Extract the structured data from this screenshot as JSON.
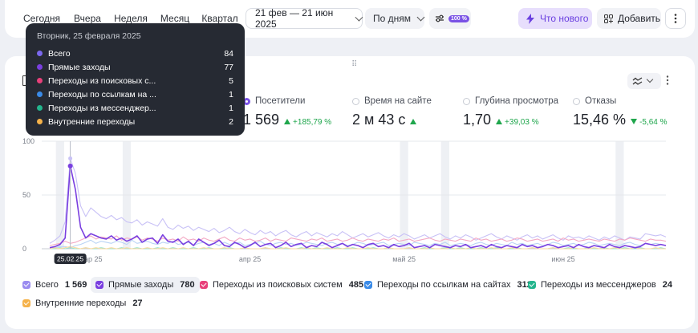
{
  "toolbar": {
    "periods": [
      "Сегодня",
      "Вчера",
      "Неделя",
      "Месяц",
      "Квартал"
    ],
    "date_range": "21 фев — 21 июн 2025",
    "grouping": "По дням",
    "sampling_badge": "100 %",
    "whats_new": "Что нового",
    "add": "Добавить"
  },
  "metrics": [
    {
      "label": "Посетители",
      "value": "1 569",
      "delta": "+185,79 %",
      "direction": "up",
      "selected": true
    },
    {
      "label": "Время на сайте",
      "value": "2 м 43 с",
      "delta": "",
      "direction": "up",
      "selected": false
    },
    {
      "label": "Глубина просмотра",
      "value": "1,70",
      "delta": "+39,03 %",
      "direction": "up",
      "selected": false
    },
    {
      "label": "Отказы",
      "value": "15,46 %",
      "delta": "-5,64 %",
      "direction": "down",
      "selected": false
    }
  ],
  "tooltip": {
    "title": "Вторник, 25 февраля 2025",
    "rows": [
      {
        "label": "Всего",
        "value": "84",
        "color": "#7b68ee"
      },
      {
        "label": "Прямые заходы",
        "value": "77",
        "color": "#7a3fe0"
      },
      {
        "label": "Переходы из поисковых с...",
        "value": "5",
        "color": "#e8407a"
      },
      {
        "label": "Переходы по ссылкам на ...",
        "value": "1",
        "color": "#3a8be8"
      },
      {
        "label": "Переходы из мессенджер...",
        "value": "1",
        "color": "#23b58d"
      },
      {
        "label": "Внутренние переходы",
        "value": "2",
        "color": "#f5b24a"
      }
    ]
  },
  "legend": [
    {
      "label": "Всего",
      "value": "1 569",
      "color": "#9b8cf0",
      "active": false
    },
    {
      "label": "Прямые заходы",
      "value": "780",
      "color": "#7a3fe0",
      "active": true
    },
    {
      "label": "Переходы из поисковых систем",
      "value": "485",
      "color": "#e8407a",
      "active": false
    },
    {
      "label": "Переходы по ссылкам на сайтах",
      "value": "312",
      "color": "#3a8be8",
      "active": false
    },
    {
      "label": "Переходы из мессенджеров",
      "value": "24",
      "color": "#23b58d",
      "active": false
    },
    {
      "label": "Внутренние переходы",
      "value": "27",
      "color": "#f5b24a",
      "active": false
    }
  ],
  "chart_data": {
    "type": "line",
    "x_start": "2025-02-21",
    "x_end": "2025-06-21",
    "x_tick_labels": [
      "мар 25",
      "апр 25",
      "май 25",
      "июн 25"
    ],
    "x_tick_dates": [
      "2025-03-01",
      "2025-04-01",
      "2025-05-01",
      "2025-06-01"
    ],
    "highlighted_x_label": "25.02.25",
    "highlighted_x": "2025-02-25",
    "ylim": [
      0,
      100
    ],
    "y_ticks": [
      0,
      50,
      100
    ],
    "grid": true,
    "holiday_bands": [
      "2025-02-23",
      "2025-03-08",
      "2025-05-01",
      "2025-05-09",
      "2025-06-12"
    ],
    "series": [
      {
        "name": "Всего",
        "color": "#c8c1f6",
        "values": [
          5,
          8,
          12,
          25,
          84,
          70,
          40,
          30,
          38,
          34,
          30,
          28,
          31,
          27,
          29,
          25,
          24,
          27,
          22,
          25,
          23,
          21,
          28,
          20,
          18,
          22,
          19,
          21,
          17,
          20,
          18,
          16,
          19,
          15,
          17,
          20,
          16,
          14,
          18,
          15,
          13,
          17,
          14,
          16,
          12,
          15,
          17,
          13,
          11,
          14,
          16,
          12,
          15,
          13,
          11,
          14,
          12,
          16,
          13,
          10,
          12,
          14,
          11,
          13,
          15,
          12,
          10,
          13,
          11,
          14,
          12,
          9,
          11,
          13,
          10,
          12,
          14,
          11,
          9,
          12,
          10,
          13,
          11,
          8,
          10,
          12,
          14,
          11,
          9,
          12,
          10,
          8,
          11,
          13,
          10,
          12,
          9,
          11,
          13,
          10,
          8,
          12,
          10,
          11,
          9,
          12,
          10,
          8,
          11,
          9,
          12,
          10,
          8,
          11,
          10,
          9,
          14,
          13,
          12,
          13,
          11
        ]
      },
      {
        "name": "Прямые заходы",
        "color": "#7a3fe0",
        "values": [
          1,
          2,
          4,
          10,
          77,
          55,
          20,
          10,
          14,
          12,
          10,
          9,
          12,
          8,
          10,
          7,
          9,
          12,
          6,
          9,
          10,
          5,
          13,
          7,
          6,
          9,
          4,
          7,
          3,
          9,
          6,
          3,
          5,
          8,
          3,
          2,
          6,
          4,
          1,
          3,
          6,
          2,
          4,
          5,
          1,
          3,
          6,
          2,
          4,
          5,
          1,
          3,
          2,
          6,
          4,
          1,
          3,
          5,
          2,
          4,
          3,
          1,
          4,
          5,
          2,
          3,
          1,
          4,
          2,
          3,
          5,
          1,
          2,
          3,
          1,
          4,
          3,
          2,
          1,
          3,
          2,
          4,
          1,
          2,
          3,
          1,
          4,
          2,
          1,
          3,
          2,
          1,
          4,
          2,
          3,
          1,
          2,
          4,
          3,
          1,
          2,
          3,
          1,
          4,
          2,
          1,
          3,
          2,
          1,
          4,
          2,
          1,
          3,
          2,
          1,
          2,
          5,
          4,
          3,
          4,
          3
        ]
      },
      {
        "name": "Переходы из поисковых систем",
        "color": "#f3a9c4",
        "values": [
          3,
          4,
          5,
          7,
          5,
          6,
          8,
          10,
          12,
          9,
          11,
          10,
          9,
          12,
          8,
          10,
          9,
          11,
          8,
          10,
          9,
          7,
          10,
          8,
          9,
          7,
          11,
          8,
          9,
          7,
          10,
          8,
          7,
          9,
          11,
          8,
          7,
          10,
          8,
          9,
          7,
          8,
          10,
          7,
          9,
          8,
          7,
          10,
          9,
          8,
          7,
          9,
          8,
          10,
          7,
          8,
          9,
          7,
          8,
          10,
          8,
          7,
          9,
          8,
          7,
          9,
          8,
          10,
          7,
          8,
          9,
          7,
          8,
          9,
          10,
          8,
          7,
          9,
          8,
          7,
          9,
          8,
          7,
          10,
          8,
          9,
          7,
          8,
          9,
          7,
          8,
          10,
          9,
          7,
          8,
          9,
          7,
          8,
          9,
          7,
          10,
          8,
          9,
          7,
          8,
          9,
          8,
          7,
          9,
          8,
          7,
          9,
          8,
          10,
          9,
          8,
          7,
          9,
          8,
          8,
          7
        ]
      },
      {
        "name": "Переходы по ссылкам на сайтах",
        "color": "#b9d3f5",
        "values": [
          1,
          1,
          2,
          2,
          1,
          3,
          4,
          6,
          8,
          5,
          7,
          6,
          5,
          7,
          6,
          4,
          8,
          5,
          6,
          7,
          5,
          4,
          6,
          5,
          7,
          4,
          5,
          6,
          3,
          5,
          6,
          4,
          5,
          3,
          6,
          4,
          5,
          6,
          3,
          4,
          5,
          7,
          4,
          3,
          5,
          6,
          4,
          5,
          3,
          4,
          6,
          5,
          4,
          3,
          5,
          6,
          4,
          5,
          3,
          4,
          6,
          5,
          3,
          4,
          5,
          6,
          3,
          4,
          5,
          4,
          3,
          6,
          5,
          4,
          3,
          5,
          4,
          6,
          3,
          4,
          5,
          4,
          3,
          5,
          6,
          4,
          3,
          5,
          4,
          3,
          6,
          4,
          5,
          3,
          4,
          5,
          3,
          4,
          6,
          5,
          3,
          4,
          5,
          3,
          4,
          6,
          5,
          3,
          4,
          5,
          4,
          3,
          5,
          6,
          4,
          3,
          5,
          4,
          5,
          4,
          3
        ]
      },
      {
        "name": "Переходы из мессенджеров",
        "color": "#9ee3cd",
        "values": [
          0,
          0,
          1,
          0,
          1,
          0,
          0,
          1,
          0,
          0,
          1,
          0,
          0,
          0,
          1,
          0,
          0,
          1,
          0,
          0,
          0,
          1,
          0,
          0,
          1,
          0,
          0,
          0,
          1,
          0,
          0,
          1,
          0,
          0,
          0,
          1,
          0,
          0,
          1,
          0,
          0,
          0,
          1,
          0,
          0,
          1,
          0,
          0,
          0,
          1,
          0,
          0,
          1,
          0,
          0,
          0,
          1,
          0,
          0,
          1,
          0,
          0,
          0,
          1,
          0,
          0,
          1,
          0,
          0,
          0,
          1,
          0,
          0,
          1,
          0,
          0,
          0,
          1,
          0,
          0,
          1,
          0,
          0,
          0,
          1,
          0,
          0,
          1,
          0,
          0,
          0,
          1,
          0,
          0,
          1,
          0,
          0,
          0,
          1,
          0,
          0,
          1,
          0,
          0,
          0,
          1,
          0,
          0,
          1,
          0,
          0,
          0,
          1,
          0,
          0,
          1,
          0,
          0,
          0,
          1,
          0
        ]
      },
      {
        "name": "Внутренние переходы",
        "color": "#fbd9a3",
        "values": [
          0,
          1,
          0,
          1,
          2,
          1,
          0,
          1,
          0,
          1,
          0,
          0,
          1,
          0,
          0,
          1,
          0,
          0,
          0,
          1,
          0,
          0,
          1,
          0,
          0,
          0,
          1,
          0,
          0,
          0,
          1,
          0,
          0,
          0,
          1,
          0,
          0,
          0,
          1,
          0,
          0,
          0,
          1,
          0,
          0,
          0,
          1,
          0,
          0,
          0,
          1,
          0,
          0,
          0,
          1,
          0,
          0,
          0,
          1,
          0,
          0,
          0,
          1,
          0,
          0,
          0,
          1,
          0,
          0,
          0,
          1,
          0,
          0,
          0,
          1,
          0,
          0,
          0,
          1,
          0,
          0,
          0,
          1,
          0,
          0,
          0,
          1,
          0,
          0,
          0,
          1,
          0,
          0,
          0,
          1,
          0,
          0,
          0,
          1,
          0,
          0,
          0,
          1,
          0,
          0,
          0,
          1,
          0,
          0,
          0,
          1,
          0,
          0,
          0,
          1,
          0,
          0,
          0,
          1,
          0,
          0
        ]
      }
    ]
  }
}
